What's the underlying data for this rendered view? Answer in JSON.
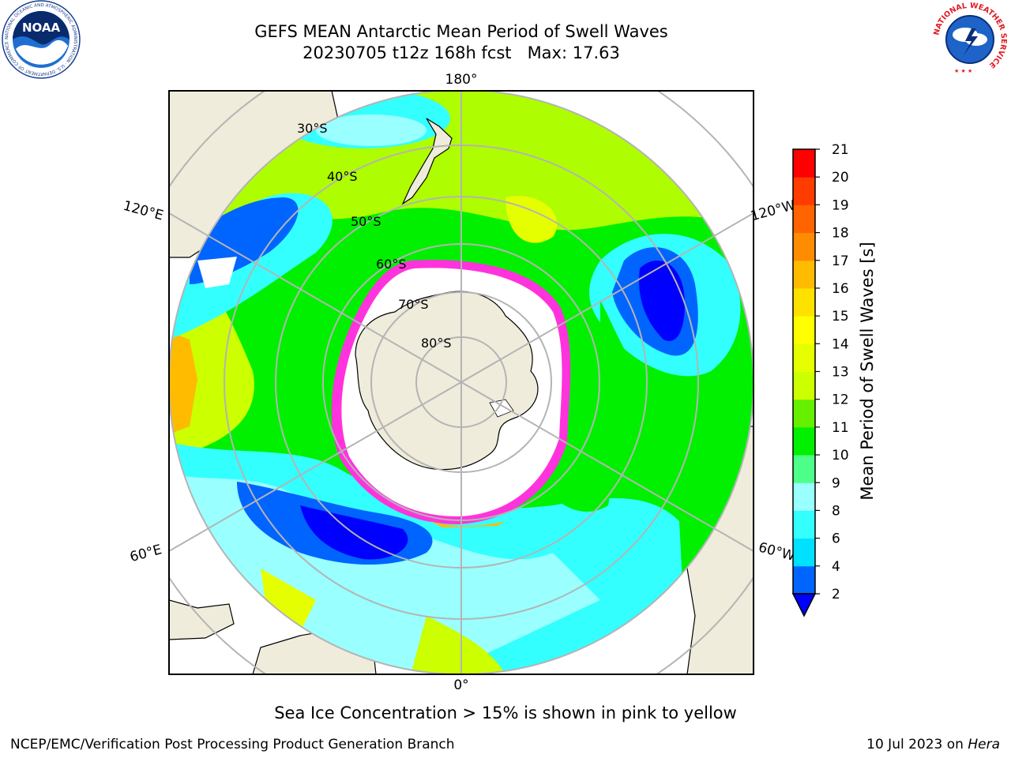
{
  "header": {
    "title_line1": "GEFS MEAN Antarctic Mean Period of Swell Waves",
    "title_line2": "20230705 t12z 168h fcst   Max: 17.63"
  },
  "logos": {
    "noaa": "NOAA",
    "noaa_ring": "NATIONAL OCEANIC AND ATMOSPHERIC ADMINISTRATION · U.S. DEPARTMENT OF COMMERCE ·",
    "nws_ring": "NATIONAL WEATHER SERVICE"
  },
  "map": {
    "projection": "south-polar-stereographic",
    "longitude_labels": {
      "top": "180°",
      "bottom": "0°",
      "upper_left": "120°E",
      "upper_right": "120°W",
      "lower_left": "60°E",
      "lower_right": "60°W"
    },
    "latitude_labels": [
      "30°S",
      "40°S",
      "50°S",
      "60°S",
      "70°S",
      "80°S"
    ],
    "colors": {
      "land": "#efecdb",
      "sea_ice_edge": "#ff33dd",
      "sea_ice_interior": "#ffffff",
      "graticule": "#b4b4b4",
      "ocean_no_data": "#ffffff"
    }
  },
  "colorbar": {
    "label": "Mean Period of Swell Waves [s]",
    "ticks": [
      "2",
      "4",
      "6",
      "8",
      "9",
      "10",
      "11",
      "12",
      "13",
      "14",
      "15",
      "16",
      "17",
      "18",
      "19",
      "20",
      "21"
    ],
    "level_colors": [
      "#0064ff",
      "#00e1ff",
      "#33ffff",
      "#99ffff",
      "#4dff88",
      "#00f000",
      "#66f000",
      "#ccff00",
      "#e6ff00",
      "#ffff00",
      "#ffe100",
      "#ffbb00",
      "#ff8c00",
      "#ff6400",
      "#ff3c00",
      "#ff0000"
    ],
    "under_color": "#0000ff"
  },
  "footer": {
    "sea_ice_note": "Sea Ice Concentration > 15% is shown in pink to yellow",
    "credit": "NCEP/EMC/Verification Post Processing Product Generation Branch",
    "date": "10 Jul 2023 on ",
    "host": "Hera"
  }
}
